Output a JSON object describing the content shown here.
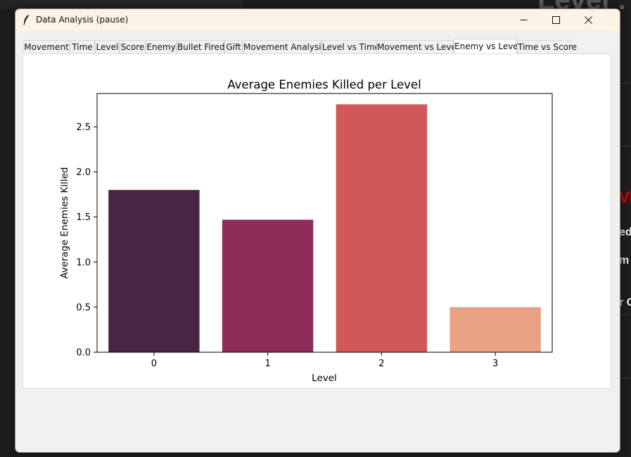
{
  "window": {
    "title": "Data Analysis (pause)",
    "colors": {
      "titlebar": "#fbf3e4",
      "body": "#f0f0f0"
    }
  },
  "tabs": [
    {
      "label": "Movement",
      "selected": false
    },
    {
      "label": "Time",
      "selected": false
    },
    {
      "label": "Level",
      "selected": false
    },
    {
      "label": "Score",
      "selected": false
    },
    {
      "label": "Enemy",
      "selected": false
    },
    {
      "label": "Bullet Fired",
      "selected": false
    },
    {
      "label": "Gift",
      "selected": false
    },
    {
      "label": "Movement Analysis",
      "selected": false
    },
    {
      "label": "Level vs Time",
      "selected": false
    },
    {
      "label": "Movement vs Level",
      "selected": false
    },
    {
      "label": "Enemy vs Level",
      "selected": true
    },
    {
      "label": "Time vs Score",
      "selected": false
    }
  ],
  "background_fragments": {
    "top_right": "Level :",
    "red_text": "VE",
    "line1": "ed:",
    "line2": "m",
    "line3": "r C",
    "red_color": "#e00000"
  },
  "chart_data": {
    "type": "bar",
    "title": "Average Enemies Killed per Level",
    "xlabel": "Level",
    "ylabel": "Average Enemies Killed",
    "categories": [
      "0",
      "1",
      "2",
      "3"
    ],
    "values": [
      1.8,
      1.47,
      2.75,
      0.5
    ],
    "colors": [
      "#482543",
      "#8f2b58",
      "#d25758",
      "#e6a282"
    ],
    "ylim": [
      0,
      2.87
    ],
    "yticks": [
      0.0,
      0.5,
      1.0,
      1.5,
      2.0,
      2.5
    ],
    "ytick_labels": [
      "0.0",
      "0.5",
      "1.0",
      "1.5",
      "2.0",
      "2.5"
    ],
    "grid": false,
    "legend": "none"
  }
}
